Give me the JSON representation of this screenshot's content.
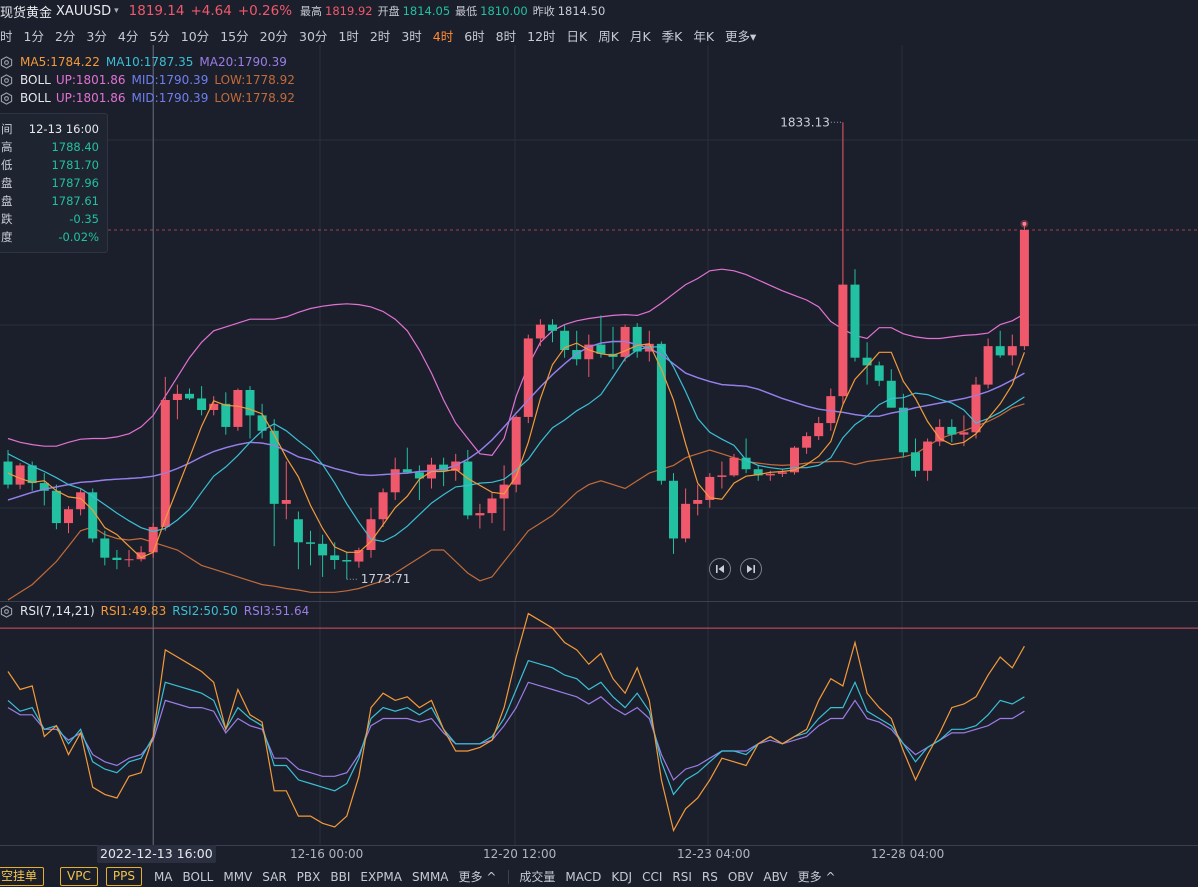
{
  "header": {
    "title": "现货黄金",
    "symbol": "XAUUSD",
    "price": "1819.14",
    "change": "+4.64",
    "change_pct": "+0.26%",
    "high_label": "最高",
    "high": "1819.92",
    "open_label": "开盘",
    "open": "1814.05",
    "low_label": "最低",
    "low": "1810.00",
    "prev_label": "昨收",
    "prev": "1814.50"
  },
  "timeframes": [
    {
      "label": "分时",
      "display": "时"
    },
    {
      "label": "1分"
    },
    {
      "label": "2分"
    },
    {
      "label": "3分"
    },
    {
      "label": "4分"
    },
    {
      "label": "5分"
    },
    {
      "label": "10分"
    },
    {
      "label": "15分"
    },
    {
      "label": "20分"
    },
    {
      "label": "30分"
    },
    {
      "label": "1时"
    },
    {
      "label": "2时"
    },
    {
      "label": "3时"
    },
    {
      "label": "4时",
      "active": true
    },
    {
      "label": "6时"
    },
    {
      "label": "8时"
    },
    {
      "label": "12时"
    },
    {
      "label": "日K"
    },
    {
      "label": "周K"
    },
    {
      "label": "月K"
    },
    {
      "label": "季K"
    },
    {
      "label": "年K"
    },
    {
      "label": "更多"
    }
  ],
  "indicators": {
    "ma": {
      "ma5": "MA5:1784.22",
      "ma10": "MA10:1787.35",
      "ma20": "MA20:1790.39"
    },
    "boll1": {
      "name": "BOLL",
      "up": "UP:1801.86",
      "mid": "MID:1790.39",
      "low": "LOW:1778.92"
    },
    "boll2": {
      "name": "BOLL",
      "up": "UP:1801.86",
      "mid": "MID:1790.39",
      "low": "LOW:1778.92"
    }
  },
  "tooltip": {
    "time_label": "间",
    "time": "12-13 16:00",
    "high_label": "高",
    "high": "1788.40",
    "low_label": "低",
    "low": "1781.70",
    "open_label": "盘",
    "open": "1787.96",
    "close_label": "盘",
    "close": "1787.61",
    "chg_label": "跌",
    "chg": "-0.35",
    "pct_label": "度",
    "pct": "-0.02%"
  },
  "annotations": {
    "max": "1833.13",
    "min": "1773.71"
  },
  "rsi": {
    "name": "RSI(7,14,21)",
    "rsi1": "RSI1:49.83",
    "rsi2": "RSI2:50.50",
    "rsi3": "RSI3:51.64"
  },
  "x_axis": {
    "selected": "2022-12-13 16:00",
    "t1": "12-16 00:00",
    "t2": "12-20 12:00",
    "t3": "12-23 04:00",
    "t4": "12-28 04:00"
  },
  "bottom_bar": {
    "buttons": [
      "空挂单",
      "VPC",
      "PPS"
    ],
    "main_inds": [
      "MA",
      "BOLL",
      "MMV",
      "SAR",
      "PBX",
      "BBI",
      "EXPMA",
      "SMMA",
      "更多 ^"
    ],
    "sub_inds": [
      "成交量",
      "MACD",
      "KDJ",
      "CCI",
      "RSI",
      "RS",
      "OBV",
      "ABV",
      "更多 ^"
    ]
  },
  "colors": {
    "up": "#f0596c",
    "down": "#21c1a1",
    "ma5": "#f39a3a",
    "ma10": "#3bbfd4",
    "ma20": "#9b7de6",
    "boll_up": "#e272d3",
    "boll_mid": "#6f7ff0",
    "boll_low": "#c26b3a",
    "rsi1": "#f39a3a",
    "rsi2": "#3bbfd4",
    "rsi3": "#9b7de6",
    "grid": "#2a2f3c",
    "rsi_line": "#d9525e"
  },
  "chart_data": {
    "type": "candlestick",
    "y_range": [
      1771,
      1836
    ],
    "rsi_range": [
      20,
      85
    ],
    "candles": [
      [
        1789.0,
        1790.5,
        1785.5,
        1786.0
      ],
      [
        1786.0,
        1788.8,
        1785.4,
        1788.5
      ],
      [
        1788.5,
        1789.0,
        1785.2,
        1786.2
      ],
      [
        1786.2,
        1787.5,
        1783.3,
        1785.2
      ],
      [
        1785.2,
        1786.0,
        1780.2,
        1781.0
      ],
      [
        1781.0,
        1783.2,
        1779.7,
        1782.8
      ],
      [
        1782.8,
        1785.5,
        1782.0,
        1785.0
      ],
      [
        1785.0,
        1785.5,
        1778.5,
        1779.0
      ],
      [
        1779.0,
        1780.0,
        1775.5,
        1776.5
      ],
      [
        1776.5,
        1777.5,
        1775.0,
        1776.2
      ],
      [
        1776.2,
        1777.5,
        1775.3,
        1776.3
      ],
      [
        1776.3,
        1778.0,
        1776.0,
        1777.2
      ],
      [
        1777.2,
        1781.0,
        1776.5,
        1780.5
      ],
      [
        1780.5,
        1800.0,
        1780.0,
        1797.0
      ],
      [
        1797.0,
        1799.0,
        1794.5,
        1797.8
      ],
      [
        1797.8,
        1798.5,
        1797.0,
        1797.2
      ],
      [
        1797.2,
        1798.8,
        1795.0,
        1795.7
      ],
      [
        1795.7,
        1797.5,
        1795.0,
        1796.5
      ],
      [
        1796.5,
        1798.0,
        1792.5,
        1793.5
      ],
      [
        1793.5,
        1798.5,
        1793.0,
        1798.3
      ],
      [
        1798.3,
        1798.8,
        1792.0,
        1795.0
      ],
      [
        1795.0,
        1796.5,
        1792.0,
        1793.0
      ],
      [
        1793.0,
        1794.5,
        1778.0,
        1783.5
      ],
      [
        1783.5,
        1789.0,
        1781.5,
        1784.0
      ],
      [
        1781.5,
        1782.5,
        1775.0,
        1778.5
      ],
      [
        1778.5,
        1780.0,
        1775.5,
        1778.3
      ],
      [
        1778.3,
        1779.5,
        1774.0,
        1776.8
      ],
      [
        1776.8,
        1778.5,
        1775.0,
        1776.2
      ],
      [
        1776.2,
        1777.2,
        1773.7,
        1776.0
      ],
      [
        1776.0,
        1777.8,
        1775.2,
        1777.5
      ],
      [
        1777.5,
        1783.0,
        1776.5,
        1781.5
      ],
      [
        1781.5,
        1785.5,
        1780.5,
        1785.0
      ],
      [
        1785.0,
        1789.5,
        1784.0,
        1788.0
      ],
      [
        1788.0,
        1790.8,
        1787.5,
        1787.6
      ],
      [
        1787.6,
        1788.5,
        1784.0,
        1786.8
      ],
      [
        1786.8,
        1789.5,
        1785.5,
        1788.6
      ],
      [
        1788.6,
        1789.5,
        1785.8,
        1787.8
      ],
      [
        1787.8,
        1790.0,
        1786.5,
        1789.0
      ],
      [
        1789.0,
        1790.5,
        1781.5,
        1782.0
      ],
      [
        1782.0,
        1783.5,
        1780.3,
        1782.3
      ],
      [
        1782.3,
        1785.0,
        1781.0,
        1784.2
      ],
      [
        1784.2,
        1788.5,
        1780.0,
        1786.0
      ],
      [
        1786.0,
        1795.0,
        1785.0,
        1794.8
      ],
      [
        1794.8,
        1805.5,
        1794.0,
        1805.0
      ],
      [
        1805.0,
        1807.5,
        1804.0,
        1806.8
      ],
      [
        1806.8,
        1807.5,
        1804.5,
        1806.0
      ],
      [
        1806.0,
        1806.8,
        1802.5,
        1803.5
      ],
      [
        1803.5,
        1806.0,
        1801.5,
        1802.3
      ],
      [
        1802.3,
        1805.5,
        1800.0,
        1804.2
      ],
      [
        1804.2,
        1808.0,
        1802.5,
        1803.0
      ],
      [
        1803.0,
        1806.5,
        1801.0,
        1802.6
      ],
      [
        1802.6,
        1806.8,
        1802.0,
        1806.5
      ],
      [
        1806.5,
        1807.0,
        1802.5,
        1803.3
      ],
      [
        1803.3,
        1806.0,
        1802.0,
        1804.3
      ],
      [
        1804.3,
        1804.6,
        1786.0,
        1786.5
      ],
      [
        1786.5,
        1787.5,
        1777.0,
        1779.0
      ],
      [
        1779.0,
        1785.5,
        1778.5,
        1783.5
      ],
      [
        1783.5,
        1786.0,
        1782.0,
        1784.0
      ],
      [
        1784.0,
        1787.5,
        1783.0,
        1787.0
      ],
      [
        1787.0,
        1789.0,
        1785.5,
        1787.2
      ],
      [
        1787.2,
        1790.0,
        1787.0,
        1789.5
      ],
      [
        1789.5,
        1792.0,
        1787.5,
        1788.0
      ],
      [
        1788.0,
        1788.5,
        1786.5,
        1787.2
      ],
      [
        1787.2,
        1787.8,
        1786.5,
        1787.4
      ],
      [
        1787.4,
        1788.0,
        1787.0,
        1787.6
      ],
      [
        1787.6,
        1791.0,
        1787.3,
        1790.8
      ],
      [
        1790.8,
        1792.8,
        1790.0,
        1792.3
      ],
      [
        1792.3,
        1794.8,
        1791.8,
        1794.0
      ],
      [
        1794.0,
        1798.5,
        1793.0,
        1797.5
      ],
      [
        1797.5,
        1833.1,
        1796.5,
        1812.0
      ],
      [
        1812.0,
        1814.0,
        1802.0,
        1802.5
      ],
      [
        1802.5,
        1804.5,
        1799.0,
        1801.5
      ],
      [
        1801.5,
        1802.0,
        1798.8,
        1799.5
      ],
      [
        1799.5,
        1801.0,
        1796.0,
        1796.0
      ],
      [
        1796.0,
        1797.8,
        1789.5,
        1790.2
      ],
      [
        1790.2,
        1792.0,
        1787.0,
        1787.8
      ],
      [
        1787.8,
        1792.0,
        1786.5,
        1791.6
      ],
      [
        1791.6,
        1794.5,
        1791.0,
        1793.5
      ],
      [
        1793.5,
        1794.5,
        1791.5,
        1792.5
      ],
      [
        1792.5,
        1795.0,
        1791.0,
        1792.8
      ],
      [
        1792.8,
        1800.0,
        1792.0,
        1799.0
      ],
      [
        1799.0,
        1805.0,
        1798.5,
        1804.0
      ],
      [
        1804.0,
        1806.0,
        1802.5,
        1802.8
      ],
      [
        1802.8,
        1805.5,
        1801.5,
        1804.0
      ],
      [
        1804.0,
        1819.9,
        1803.5,
        1819.1
      ]
    ],
    "ma5": [
      1787.5,
      1786.8,
      1786.3,
      1786.5,
      1785.2,
      1784.4,
      1784.2,
      1782.7,
      1780.4,
      1779.5,
      1778.0,
      1776.5,
      1777.2,
      1781.5,
      1785.5,
      1789.5,
      1793.6,
      1796.9,
      1796.3,
      1796.2,
      1795.8,
      1795.2,
      1792.5,
      1789.5,
      1787.0,
      1783.3,
      1780.3,
      1777.9,
      1777.2,
      1777.2,
      1778.6,
      1780.8,
      1783.0,
      1784.5,
      1786.7,
      1787.7,
      1787.7,
      1788.0,
      1786.8,
      1785.9,
      1785.0,
      1784.8,
      1787.1,
      1791.5,
      1797.2,
      1801.6,
      1803.8,
      1804.4,
      1803.5,
      1803.0,
      1802.8,
      1803.4,
      1804.1,
      1804.3,
      1801.0,
      1797.0,
      1791.3,
      1786.2,
      1784.3,
      1784.1,
      1786.2,
      1787.1,
      1787.3,
      1787.6,
      1787.7,
      1787.9,
      1788.6,
      1789.7,
      1791.6,
      1796.4,
      1799.7,
      1801.4,
      1803.2,
      1803.2,
      1799.4,
      1797.2,
      1794.2,
      1792.0,
      1791.2,
      1791.5,
      1792.6,
      1794.6,
      1796.5,
      1799.0,
      1803.2
    ],
    "ma10": [
      1790.0,
      1789.2,
      1788.4,
      1787.7,
      1786.9,
      1786.0,
      1785.5,
      1784.5,
      1783.4,
      1782.3,
      1781.3,
      1780.4,
      1779.9,
      1780.3,
      1781.4,
      1782.8,
      1785.0,
      1787.1,
      1788.3,
      1789.8,
      1791.5,
      1793.0,
      1793.9,
      1793.0,
      1791.7,
      1790.5,
      1788.6,
      1786.2,
      1783.5,
      1781.1,
      1778.9,
      1778.6,
      1779.4,
      1780.6,
      1782.1,
      1783.6,
      1784.7,
      1785.7,
      1785.9,
      1786.2,
      1786.3,
      1786.7,
      1787.9,
      1789.3,
      1791.5,
      1793.4,
      1794.4,
      1795.6,
      1796.5,
      1797.7,
      1800.0,
      1802.4,
      1803.5,
      1803.9,
      1803.9,
      1801.3,
      1798.1,
      1794.6,
      1792.8,
      1791.9,
      1791.1,
      1789.2,
      1788.5,
      1788.2,
      1788.0,
      1788.2,
      1788.2,
      1788.5,
      1789.5,
      1792.1,
      1793.8,
      1794.9,
      1796.4,
      1797.2,
      1797.3,
      1797.9,
      1797.7,
      1797.1,
      1796.6,
      1795.7,
      1794.0,
      1794.6,
      1795.4,
      1796.4,
      1797.4
    ],
    "ma20": [
      1784.0,
      1784.5,
      1785.0,
      1785.4,
      1785.7,
      1786.0,
      1786.3,
      1786.4,
      1786.6,
      1786.7,
      1786.8,
      1786.9,
      1787.1,
      1787.5,
      1788.1,
      1788.8,
      1789.6,
      1790.3,
      1790.8,
      1791.2,
      1791.5,
      1791.4,
      1791.1,
      1790.4,
      1789.6,
      1789.2,
      1788.6,
      1788.1,
      1787.7,
      1787.3,
      1787.2,
      1787.3,
      1787.4,
      1787.5,
      1787.7,
      1787.8,
      1788.0,
      1788.5,
      1789.3,
      1790.4,
      1791.8,
      1793.5,
      1795.3,
      1797.0,
      1798.7,
      1800.3,
      1801.7,
      1803.0,
      1803.9,
      1804.4,
      1804.6,
      1804.6,
      1804.2,
      1803.7,
      1802.9,
      1801.7,
      1800.5,
      1799.9,
      1799.4,
      1799.0,
      1798.9,
      1798.8,
      1798.4,
      1797.8,
      1797.2,
      1796.7,
      1796.2,
      1795.8,
      1795.6,
      1795.4,
      1795.1,
      1794.9,
      1794.9,
      1795.3,
      1795.6,
      1796.0,
      1796.3,
      1796.6,
      1796.9,
      1797.2,
      1797.6,
      1798.1,
      1798.8,
      1799.6,
      1800.5
    ],
    "boll_up": [
      1792.0,
      1791.5,
      1791.2,
      1791.0,
      1791.0,
      1791.5,
      1791.9,
      1792.0,
      1792.0,
      1792.2,
      1792.6,
      1793.5,
      1795.0,
      1797.5,
      1800.0,
      1802.5,
      1804.5,
      1806.0,
      1806.5,
      1807.0,
      1807.5,
      1807.5,
      1807.5,
      1807.8,
      1808.4,
      1808.9,
      1809.2,
      1809.4,
      1809.5,
      1809.4,
      1809.1,
      1808.5,
      1807.5,
      1806.0,
      1803.5,
      1800.5,
      1797.0,
      1794.0,
      1792.0,
      1790.0,
      1789.8,
      1792.0,
      1797.5,
      1801.5,
      1804.5,
      1806.0,
      1806.8,
      1807.3,
      1807.6,
      1807.8,
      1808.0,
      1808.1,
      1808.0,
      1808.5,
      1809.6,
      1810.8,
      1812.0,
      1812.8,
      1813.8,
      1814.0,
      1813.8,
      1813.3,
      1812.6,
      1811.9,
      1811.2,
      1810.6,
      1810.0,
      1809.1,
      1807.2,
      1806.2,
      1805.4,
      1805.0,
      1806.4,
      1806.4,
      1805.6,
      1805.2,
      1805.0,
      1805.0,
      1805.2,
      1805.4,
      1805.5,
      1805.7,
      1806.8,
      1807.3,
      1808.2
    ],
    "boll_mid": [
      1784.0,
      1784.5,
      1785.0,
      1785.4,
      1785.7,
      1786.0,
      1786.3,
      1786.4,
      1786.6,
      1786.7,
      1786.8,
      1786.9,
      1787.1,
      1787.5,
      1788.1,
      1788.8,
      1789.6,
      1790.3,
      1790.8,
      1791.2,
      1791.5,
      1791.4,
      1791.1,
      1790.4,
      1789.6,
      1789.2,
      1788.6,
      1788.1,
      1787.7,
      1787.3,
      1787.2,
      1787.3,
      1787.4,
      1787.5,
      1787.7,
      1787.8,
      1788.0,
      1788.5,
      1789.3,
      1790.4,
      1791.8,
      1793.5,
      1795.3,
      1797.0,
      1798.7,
      1800.3,
      1801.7,
      1803.0,
      1803.9,
      1804.4,
      1804.6,
      1804.6,
      1804.2,
      1803.7,
      1802.9,
      1801.7,
      1800.5,
      1799.9,
      1799.4,
      1799.0,
      1798.9,
      1798.8,
      1798.4,
      1797.8,
      1797.2,
      1796.7,
      1796.2,
      1795.8,
      1795.6,
      1795.4,
      1795.1,
      1794.9,
      1794.9,
      1795.3,
      1795.6,
      1796.0,
      1796.3,
      1796.6,
      1796.9,
      1797.2,
      1797.6,
      1798.1,
      1798.8,
      1799.6,
      1800.5
    ],
    "boll_low": [
      1771.0,
      1772.0,
      1773.0,
      1774.5,
      1776.0,
      1778.0,
      1780.0,
      1780.5,
      1779.5,
      1779.0,
      1778.8,
      1779.0,
      1778.5,
      1778.0,
      1777.5,
      1776.5,
      1775.5,
      1775.0,
      1774.5,
      1774.0,
      1773.5,
      1773.0,
      1772.8,
      1772.5,
      1772.3,
      1772.0,
      1772.0,
      1772.0,
      1772.2,
      1772.5,
      1773.0,
      1773.5,
      1774.5,
      1775.5,
      1776.5,
      1777.5,
      1777.5,
      1776.0,
      1774.5,
      1773.5,
      1774.0,
      1776.0,
      1778.0,
      1780.0,
      1781.0,
      1782.0,
      1783.5,
      1785.0,
      1786.0,
      1786.5,
      1786.0,
      1785.5,
      1786.5,
      1787.5,
      1788.0,
      1788.5,
      1789.5,
      1790.0,
      1790.5,
      1790.0,
      1789.5,
      1789.0,
      1788.8,
      1788.6,
      1788.5,
      1788.6,
      1788.8,
      1788.9,
      1789.0,
      1789.0,
      1788.6,
      1789.0,
      1789.2,
      1789.4,
      1789.6,
      1790.0,
      1791.0,
      1792.0,
      1792.5,
      1793.0,
      1793.6,
      1794.2,
      1795.0,
      1796.0,
      1796.5
    ],
    "rsi1": [
      68,
      63,
      64,
      50,
      53,
      45,
      51,
      36,
      34,
      33,
      39,
      40,
      50,
      74,
      72,
      70,
      68,
      65,
      52,
      63,
      56,
      54,
      35,
      35,
      28,
      28,
      26,
      25,
      28,
      39,
      58,
      62,
      60,
      61,
      58,
      60,
      52,
      46,
      46,
      47,
      49,
      58,
      72,
      84,
      82,
      80,
      76,
      74,
      70,
      73,
      66,
      62,
      69,
      60,
      38,
      24,
      30,
      33,
      38,
      44,
      43,
      42,
      48,
      50,
      48,
      50,
      52,
      60,
      66,
      64,
      76,
      62,
      58,
      55,
      46,
      38,
      45,
      51,
      58,
      59,
      61,
      67,
      72,
      69,
      75
    ],
    "rsi2": [
      60,
      57,
      58,
      52,
      53,
      48,
      52,
      43,
      41,
      40,
      43,
      44,
      50,
      65,
      64,
      63,
      62,
      60,
      52,
      58,
      55,
      53,
      42,
      42,
      38,
      37,
      36,
      35,
      37,
      44,
      55,
      58,
      57,
      58,
      56,
      58,
      52,
      48,
      48,
      48,
      50,
      55,
      63,
      71,
      70,
      69,
      67,
      66,
      63,
      65,
      61,
      58,
      62,
      57,
      43,
      34,
      38,
      40,
      43,
      46,
      46,
      45,
      48,
      50,
      48,
      50,
      51,
      55,
      58,
      58,
      65,
      57,
      55,
      53,
      48,
      43,
      47,
      49,
      52,
      52,
      53,
      56,
      60,
      59,
      61
    ],
    "rsi3": [
      58,
      56,
      56,
      52,
      52,
      49,
      51,
      45,
      43,
      42,
      44,
      45,
      49,
      60,
      59,
      58,
      58,
      57,
      51,
      55,
      53,
      52,
      44,
      44,
      41,
      40,
      39,
      39,
      40,
      45,
      53,
      55,
      55,
      55,
      54,
      55,
      51,
      48,
      48,
      48,
      49,
      53,
      58,
      65,
      64,
      63,
      62,
      61,
      59,
      61,
      58,
      56,
      58,
      55,
      45,
      38,
      41,
      42,
      44,
      46,
      46,
      46,
      48,
      49,
      48,
      49,
      50,
      53,
      55,
      55,
      60,
      55,
      54,
      52,
      48,
      45,
      47,
      49,
      51,
      51,
      52,
      53,
      55,
      55,
      57
    ]
  }
}
